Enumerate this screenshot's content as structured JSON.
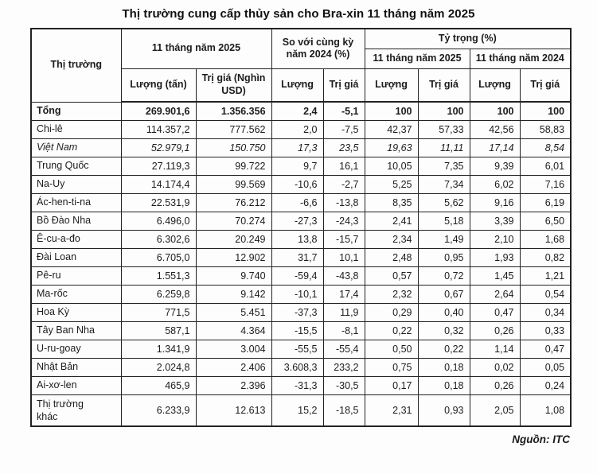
{
  "title": "Thị trường cung cấp thủy sản cho Bra-xin 11 tháng năm 2025",
  "source": "Nguồn: ITC",
  "colors": {
    "border": "#222222",
    "text": "#1c1c1c",
    "background": "#fdfdfd"
  },
  "table": {
    "header": {
      "market": "Thị trường",
      "period_2025": "11 tháng năm 2025",
      "vs_same_period_2024": "So với cùng kỳ năm 2024 (%)",
      "share": "Tỷ trọng (%)",
      "share_2025": "11 tháng năm 2025",
      "share_2024": "11 tháng năm 2024",
      "qty_ton": "Lượng (tấn)",
      "value_kusd": "Trị giá (Nghìn USD)",
      "qty": "Lượng",
      "value": "Trị giá"
    },
    "rows": [
      {
        "market": "Tổng",
        "style": "bold",
        "cells": [
          "269.901,6",
          "1.356.356",
          "2,4",
          "-5,1",
          "100",
          "100",
          "100",
          "100"
        ]
      },
      {
        "market": "Chi-lê",
        "style": "normal",
        "cells": [
          "114.357,2",
          "777.562",
          "2,0",
          "-7,5",
          "42,37",
          "57,33",
          "42,56",
          "58,83"
        ]
      },
      {
        "market": "Việt Nam",
        "style": "italic",
        "cells": [
          "52.979,1",
          "150.750",
          "17,3",
          "23,5",
          "19,63",
          "11,11",
          "17,14",
          "8,54"
        ]
      },
      {
        "market": "Trung Quốc",
        "style": "normal",
        "cells": [
          "27.119,3",
          "99.722",
          "9,7",
          "16,1",
          "10,05",
          "7,35",
          "9,39",
          "6,01"
        ]
      },
      {
        "market": "Na-Uy",
        "style": "normal",
        "cells": [
          "14.174,4",
          "99.569",
          "-10,6",
          "-2,7",
          "5,25",
          "7,34",
          "6,02",
          "7,16"
        ]
      },
      {
        "market": "Ác-hen-ti-na",
        "style": "normal",
        "cells": [
          "22.531,9",
          "76.212",
          "-6,6",
          "-13,8",
          "8,35",
          "5,62",
          "9,16",
          "6,19"
        ]
      },
      {
        "market": "Bồ Đào Nha",
        "style": "normal",
        "cells": [
          "6.496,0",
          "70.274",
          "-27,3",
          "-24,3",
          "2,41",
          "5,18",
          "3,39",
          "6,50"
        ]
      },
      {
        "market": "Ê-cu-a-đo",
        "style": "normal",
        "cells": [
          "6.302,6",
          "20.249",
          "13,8",
          "-15,7",
          "2,34",
          "1,49",
          "2,10",
          "1,68"
        ]
      },
      {
        "market": "Đài Loan",
        "style": "normal",
        "cells": [
          "6.705,0",
          "12.902",
          "31,7",
          "10,1",
          "2,48",
          "0,95",
          "1,93",
          "0,82"
        ]
      },
      {
        "market": "Pê-ru",
        "style": "normal",
        "cells": [
          "1.551,3",
          "9.740",
          "-59,4",
          "-43,8",
          "0,57",
          "0,72",
          "1,45",
          "1,21"
        ]
      },
      {
        "market": "Ma-rốc",
        "style": "normal",
        "cells": [
          "6.259,8",
          "9.142",
          "-10,1",
          "17,4",
          "2,32",
          "0,67",
          "2,64",
          "0,54"
        ]
      },
      {
        "market": "Hoa Kỳ",
        "style": "normal",
        "cells": [
          "771,5",
          "5.451",
          "-37,3",
          "11,9",
          "0,29",
          "0,40",
          "0,47",
          "0,34"
        ]
      },
      {
        "market": "Tây Ban Nha",
        "style": "normal",
        "cells": [
          "587,1",
          "4.364",
          "-15,5",
          "-8,1",
          "0,22",
          "0,32",
          "0,26",
          "0,33"
        ]
      },
      {
        "market": "U-ru-goay",
        "style": "normal",
        "cells": [
          "1.341,9",
          "3.004",
          "-55,5",
          "-55,4",
          "0,50",
          "0,22",
          "1,14",
          "0,47"
        ]
      },
      {
        "market": "Nhật Bản",
        "style": "normal",
        "cells": [
          "2.024,8",
          "2.406",
          "3.608,3",
          "233,2",
          "0,75",
          "0,18",
          "0,02",
          "0,05"
        ]
      },
      {
        "market": "Ai-xơ-len",
        "style": "normal",
        "cells": [
          "465,9",
          "2.396",
          "-31,3",
          "-30,5",
          "0,17",
          "0,18",
          "0,26",
          "0,24"
        ]
      },
      {
        "market": "Thị trường khác",
        "style": "normal",
        "cells": [
          "6.233,9",
          "12.613",
          "15,2",
          "-18,5",
          "2,31",
          "0,93",
          "2,05",
          "1,08"
        ]
      }
    ]
  }
}
